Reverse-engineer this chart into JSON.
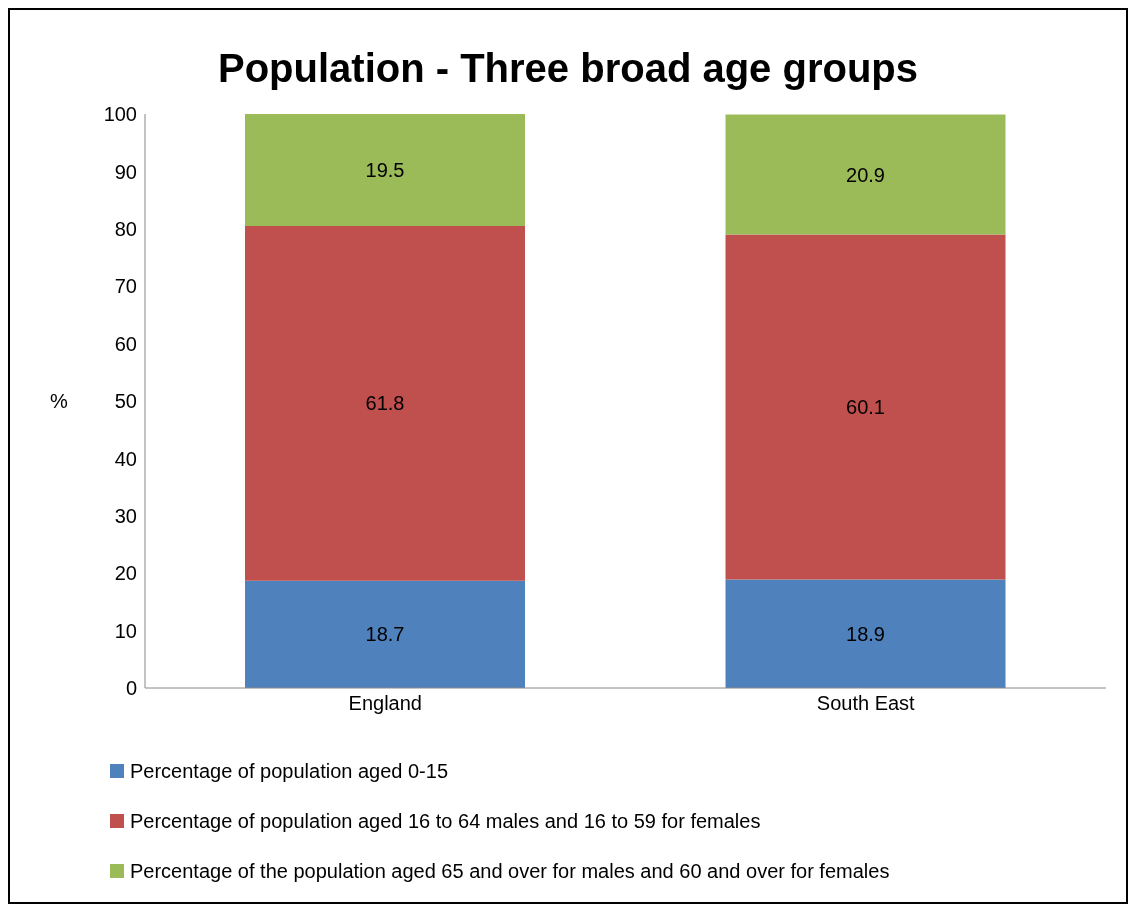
{
  "chart_data": {
    "type": "bar",
    "title": "Population - Three broad age groups",
    "ylabel": "%",
    "categories": [
      "England",
      "South East"
    ],
    "stacked": true,
    "series": [
      {
        "name": "Percentage of population aged 0-15",
        "color": "#4f81bd",
        "values": [
          18.7,
          18.9
        ]
      },
      {
        "name": "Percentage of population aged 16 to 64 males and 16 to 59 for females",
        "color": "#c0504d",
        "values": [
          61.8,
          60.1
        ]
      },
      {
        "name": "Percentage of the population aged 65 and over for males and 60 and over for females",
        "color": "#9bbb59",
        "values": [
          19.5,
          20.9
        ]
      }
    ],
    "ylim": [
      0,
      100
    ],
    "yticks": [
      0,
      10,
      20,
      30,
      40,
      50,
      60,
      70,
      80,
      90,
      100
    ],
    "data_labels": true,
    "grid": false,
    "legend": "bottom"
  }
}
